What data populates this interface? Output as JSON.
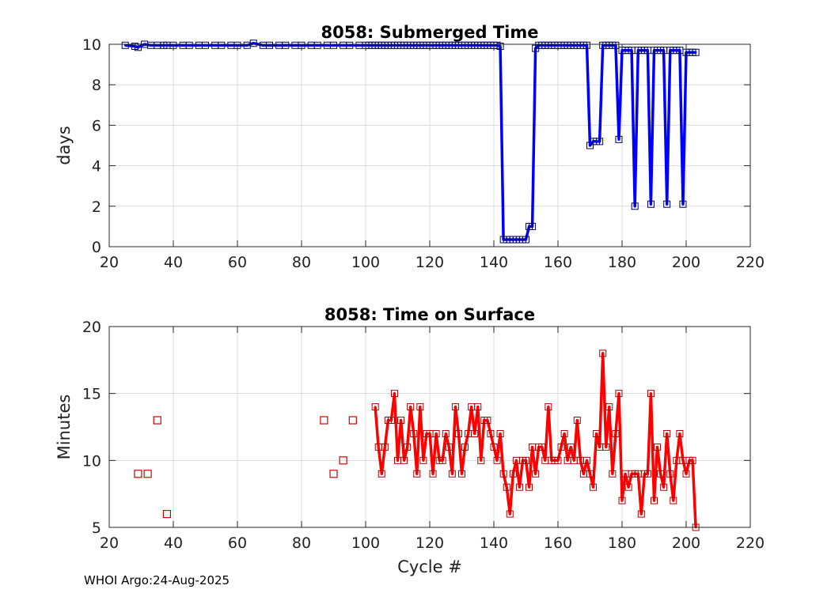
{
  "footer": "WHOI Argo:24-Aug-2025",
  "chart_data": [
    {
      "type": "line",
      "title": "8058: Submerged Time",
      "xlabel": "",
      "ylabel": "days",
      "xlim": [
        20,
        220
      ],
      "ylim": [
        0,
        10
      ],
      "xticks": [
        20,
        40,
        60,
        80,
        100,
        120,
        140,
        160,
        180,
        200,
        220
      ],
      "yticks": [
        0,
        2,
        4,
        6,
        8,
        10
      ],
      "grid": true,
      "color": "#0000ff",
      "marker": "square",
      "series": [
        {
          "name": "Submerged Time",
          "x": [
            25,
            28,
            29,
            31,
            33,
            35,
            37,
            38,
            40,
            43,
            45,
            48,
            50,
            53,
            55,
            58,
            60,
            63,
            65,
            68,
            70,
            73,
            75,
            78,
            80,
            83,
            85,
            88,
            90,
            93,
            95,
            98,
            100,
            101,
            102,
            103,
            104,
            105,
            106,
            107,
            108,
            109,
            110,
            111,
            112,
            113,
            114,
            115,
            116,
            117,
            118,
            119,
            120,
            121,
            122,
            123,
            124,
            125,
            126,
            127,
            128,
            129,
            130,
            131,
            132,
            133,
            134,
            135,
            136,
            137,
            138,
            139,
            140,
            141,
            142,
            143,
            144,
            145,
            146,
            147,
            148,
            149,
            150,
            151,
            152,
            153,
            154,
            155,
            156,
            157,
            158,
            159,
            160,
            161,
            162,
            163,
            164,
            165,
            166,
            167,
            168,
            169,
            170,
            171,
            172,
            173,
            174,
            175,
            176,
            177,
            178,
            179,
            180,
            181,
            182,
            183,
            184,
            185,
            186,
            187,
            188,
            189,
            190,
            191,
            192,
            193,
            194,
            195,
            196,
            197,
            198,
            199,
            200,
            201,
            202,
            203
          ],
          "values": [
            9.95,
            9.9,
            9.85,
            10.0,
            9.95,
            9.95,
            9.95,
            9.95,
            9.95,
            9.95,
            9.95,
            9.95,
            9.95,
            9.95,
            9.95,
            9.95,
            9.95,
            9.95,
            10.05,
            9.95,
            9.95,
            9.95,
            9.95,
            9.95,
            9.95,
            9.95,
            9.95,
            9.95,
            9.95,
            9.95,
            9.95,
            9.95,
            9.95,
            9.95,
            9.95,
            9.95,
            9.95,
            9.95,
            9.95,
            9.95,
            9.95,
            9.95,
            9.95,
            9.95,
            9.95,
            9.95,
            9.95,
            9.95,
            9.95,
            9.95,
            9.95,
            9.95,
            9.95,
            9.95,
            9.95,
            9.95,
            9.95,
            9.95,
            9.95,
            9.95,
            9.95,
            9.95,
            9.95,
            9.95,
            9.95,
            9.95,
            9.95,
            9.95,
            9.95,
            9.95,
            9.95,
            9.95,
            9.95,
            9.95,
            9.9,
            0.35,
            0.35,
            0.35,
            0.35,
            0.35,
            0.35,
            0.35,
            0.35,
            1.0,
            1.0,
            9.8,
            9.95,
            9.95,
            9.95,
            9.95,
            9.95,
            9.95,
            9.95,
            9.95,
            9.95,
            9.95,
            9.95,
            9.95,
            9.95,
            9.95,
            9.95,
            9.95,
            5.0,
            5.2,
            5.2,
            5.2,
            9.95,
            9.95,
            9.95,
            9.95,
            9.95,
            5.3,
            9.7,
            9.7,
            9.7,
            9.7,
            2.0,
            9.7,
            9.7,
            9.7,
            9.7,
            2.1,
            9.7,
            9.7,
            9.7,
            9.7,
            2.1,
            9.7,
            9.7,
            9.7,
            9.7,
            2.1,
            9.6,
            9.6,
            9.6,
            9.6
          ]
        }
      ]
    },
    {
      "type": "line",
      "title": "8058: Time on Surface",
      "xlabel": "Cycle #",
      "ylabel": "Minutes",
      "xlim": [
        20,
        220
      ],
      "ylim": [
        5,
        20
      ],
      "xticks": [
        20,
        40,
        60,
        80,
        100,
        120,
        140,
        160,
        180,
        200,
        220
      ],
      "yticks": [
        5,
        10,
        15,
        20
      ],
      "grid": true,
      "color": "#ff0000",
      "marker": "square",
      "isolated_points": {
        "x": [
          29,
          32,
          35,
          38,
          87,
          90,
          93,
          96
        ],
        "values": [
          9,
          9,
          13,
          6,
          13,
          9,
          10,
          13
        ]
      },
      "series": [
        {
          "name": "Time on Surface",
          "x": [
            103,
            104,
            105,
            106,
            107,
            108,
            109,
            110,
            111,
            112,
            113,
            114,
            115,
            116,
            117,
            118,
            119,
            120,
            121,
            122,
            123,
            124,
            125,
            126,
            127,
            128,
            129,
            130,
            131,
            132,
            133,
            134,
            135,
            136,
            137,
            138,
            139,
            140,
            141,
            142,
            143,
            144,
            145,
            146,
            147,
            148,
            149,
            150,
            151,
            152,
            153,
            154,
            155,
            156,
            157,
            158,
            159,
            160,
            161,
            162,
            163,
            164,
            165,
            166,
            167,
            168,
            169,
            170,
            171,
            172,
            173,
            174,
            175,
            176,
            177,
            178,
            179,
            180,
            181,
            182,
            183,
            184,
            185,
            186,
            187,
            188,
            189,
            190,
            191,
            192,
            193,
            194,
            195,
            196,
            197,
            198,
            199,
            200,
            201,
            202,
            203
          ],
          "values": [
            14,
            11,
            9,
            11,
            13,
            13,
            15,
            10,
            13,
            10,
            11,
            14,
            12,
            9,
            14,
            10,
            12,
            12,
            9,
            12,
            10,
            10,
            12,
            11,
            9,
            14,
            12,
            9,
            11,
            12,
            14,
            12,
            14,
            10,
            13,
            13,
            12,
            11,
            10,
            12,
            9,
            8,
            6,
            9,
            10,
            8,
            10,
            10,
            8,
            11,
            9,
            11,
            11,
            10,
            14,
            10,
            10,
            10,
            11,
            12,
            10,
            11,
            10,
            13,
            10,
            9,
            10,
            9,
            8,
            12,
            11,
            18,
            11,
            14,
            9,
            12,
            15,
            7,
            9,
            8,
            9,
            9,
            9,
            6,
            9,
            9,
            15,
            7,
            11,
            9,
            8,
            12,
            9,
            7,
            10,
            12,
            10,
            9,
            10,
            10,
            5
          ]
        }
      ]
    }
  ]
}
